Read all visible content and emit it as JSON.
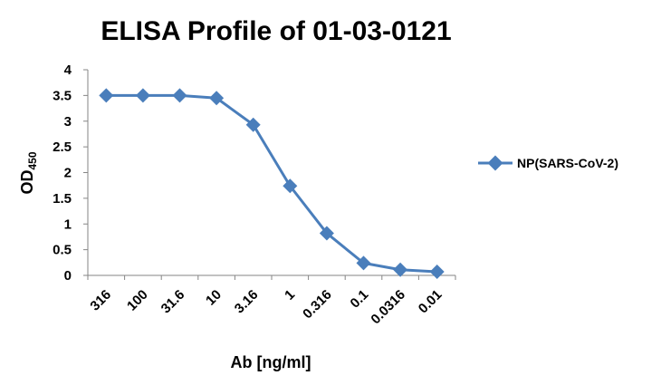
{
  "chart_data": {
    "type": "line",
    "title": "ELISA Profile of 01-03-0121",
    "xlabel": "Ab [ng/ml]",
    "ylabel": {
      "main": "OD",
      "sub": "450"
    },
    "categories": [
      "316",
      "100",
      "31.6",
      "10",
      "3.16",
      "1",
      "0.316",
      "0.1",
      "0.0316",
      "0.01"
    ],
    "ylim": [
      0,
      4
    ],
    "yticks": [
      "0",
      "0.5",
      "1",
      "1.5",
      "2",
      "2.5",
      "3",
      "3.5",
      "4"
    ],
    "grid": false,
    "legend_position": "right",
    "series": [
      {
        "name": "NP(SARS-CoV-2)",
        "color": "#4a7ebb",
        "marker": "diamond",
        "values": [
          3.5,
          3.5,
          3.5,
          3.45,
          2.93,
          1.74,
          0.82,
          0.24,
          0.11,
          0.07
        ]
      }
    ]
  }
}
